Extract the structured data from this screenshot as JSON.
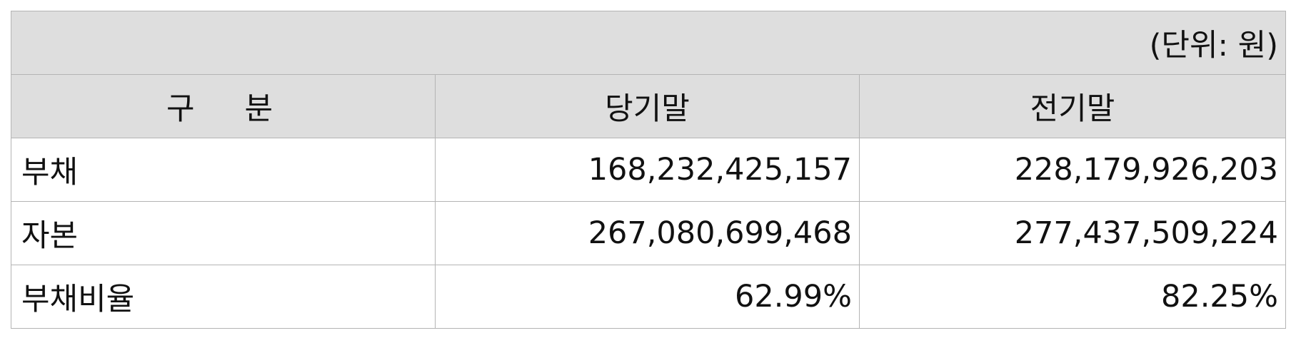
{
  "unit_label": "(단위: 원)",
  "headers": {
    "category": "구분",
    "current": "당기말",
    "previous": "전기말"
  },
  "rows": [
    {
      "label": "부채",
      "current": "168,232,425,157",
      "previous": "228,179,926,203"
    },
    {
      "label": "자본",
      "current": "267,080,699,468",
      "previous": "277,437,509,224"
    },
    {
      "label": "부채비율",
      "current": "62.99%",
      "previous": "82.25%"
    }
  ]
}
